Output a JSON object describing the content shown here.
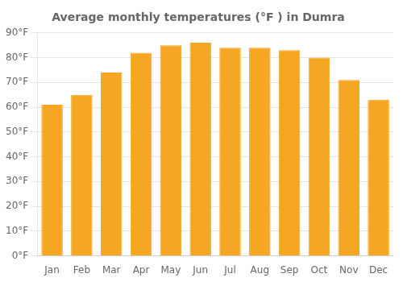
{
  "chart_data": {
    "type": "bar",
    "title": "Average monthly temperatures (°F ) in Dumra",
    "categories": [
      "Jan",
      "Feb",
      "Mar",
      "Apr",
      "May",
      "Jun",
      "Jul",
      "Aug",
      "Sep",
      "Oct",
      "Nov",
      "Dec"
    ],
    "values": [
      61,
      65,
      74,
      82,
      85,
      86,
      84,
      84,
      83,
      80,
      71,
      63
    ],
    "color": "#F5A623",
    "ylim": [
      0,
      90
    ],
    "yticks": [
      {
        "value": 0,
        "label": "0°F"
      },
      {
        "value": 10,
        "label": "10°F"
      },
      {
        "value": 20,
        "label": "20°F"
      },
      {
        "value": 30,
        "label": "30°F"
      },
      {
        "value": 40,
        "label": "40°F"
      },
      {
        "value": 50,
        "label": "50°F"
      },
      {
        "value": 60,
        "label": "60°F"
      },
      {
        "value": 70,
        "label": "70°F"
      },
      {
        "value": 80,
        "label": "80°F"
      },
      {
        "value": 90,
        "label": "90°F"
      }
    ],
    "grid": true
  }
}
